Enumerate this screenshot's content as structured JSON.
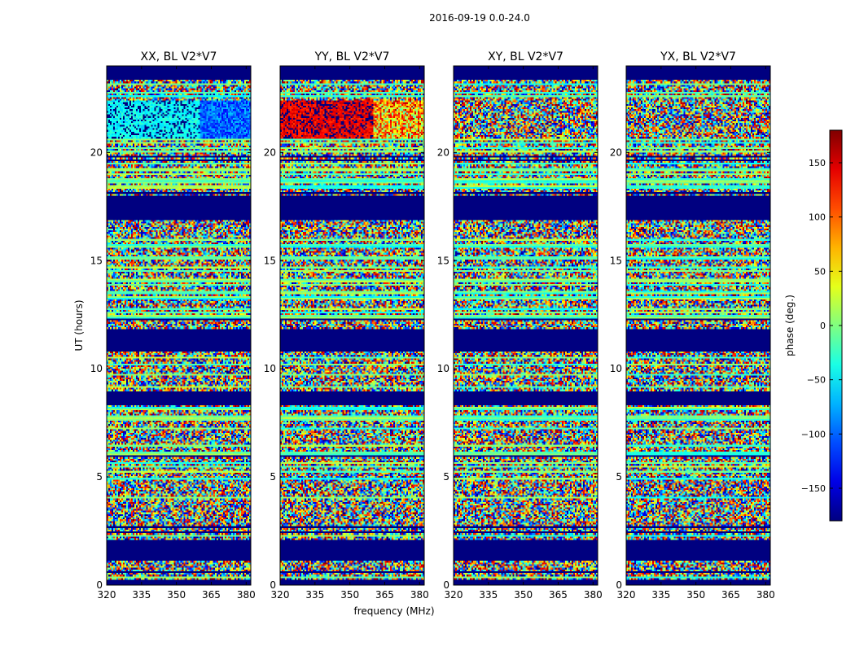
{
  "chart_data": {
    "type": "heatmap",
    "suptitle": "2016-09-19 0.0-24.0",
    "xlabel": "frequency (MHz)",
    "ylabel": "UT (hours)",
    "xlim": [
      320,
      382
    ],
    "ylim": [
      0,
      24
    ],
    "xticks": [
      320,
      335,
      350,
      365,
      380
    ],
    "yticks": [
      0,
      5,
      10,
      15,
      20
    ],
    "panels": [
      {
        "title": "XX, BL V2*V7",
        "cal_band": "cyan",
        "cal_high": "blue"
      },
      {
        "title": "YY, BL V2*V7",
        "cal_band": "red",
        "cal_high": "green"
      },
      {
        "title": "XY, BL V2*V7",
        "cal_band": "noise",
        "cal_high": "noise"
      },
      {
        "title": "YX, BL V2*V7",
        "cal_band": "noise",
        "cal_high": "noise"
      }
    ],
    "blank_ut_ranges": [
      [
        0,
        0.1
      ],
      [
        1.1,
        2.05
      ],
      [
        8.35,
        8.85
      ],
      [
        10.8,
        11.85
      ],
      [
        16.85,
        17.95
      ],
      [
        23.35,
        24
      ]
    ],
    "colorbar": {
      "label": "phase (deg.)",
      "range": [
        -180,
        180
      ],
      "ticks": [
        -150,
        -100,
        -50,
        0,
        50,
        100,
        150
      ],
      "colormap": "jet"
    }
  },
  "colors": {
    "masked": "#000080",
    "line": "#000000"
  }
}
